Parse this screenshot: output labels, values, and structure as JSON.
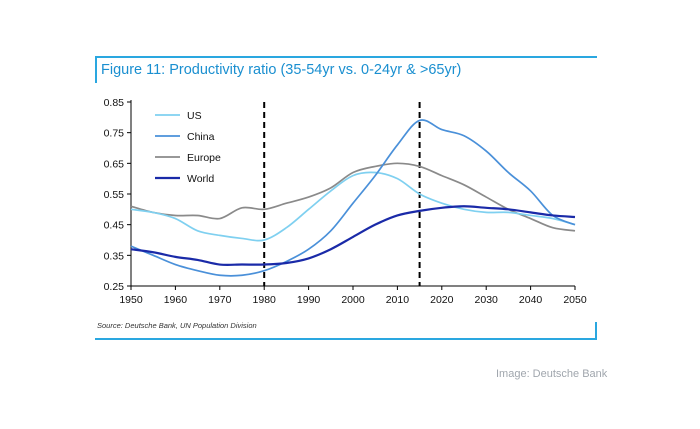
{
  "title": "Figure 11: Productivity ratio (35-54yr vs. 0-24yr & >65yr)",
  "source": "Source: Deutsche Bank, UN Population Division",
  "credit": "Image: Deutsche Bank",
  "colors": {
    "frame": "#2aa7e0",
    "title": "#1a8fd0",
    "US": "#7fd0f0",
    "China": "#4a90d9",
    "Europe": "#8a8a8a",
    "World": "#1a2aa8"
  },
  "chart_data": {
    "type": "line",
    "title": "Figure 11: Productivity ratio (35-54yr vs. 0-24yr & >65yr)",
    "xlabel": "",
    "ylabel": "",
    "xlim": [
      1950,
      2050
    ],
    "ylim": [
      0.25,
      0.85
    ],
    "xticks": [
      1950,
      1960,
      1970,
      1980,
      1990,
      2000,
      2010,
      2020,
      2030,
      2040,
      2050
    ],
    "yticks": [
      "0.25",
      "0.35",
      "0.45",
      "0.55",
      "0.65",
      "0.75",
      "0.85"
    ],
    "vlines": [
      1980,
      2015
    ],
    "legend": [
      "US",
      "China",
      "Europe",
      "World"
    ],
    "legend_position": "top-left",
    "series": [
      {
        "name": "US",
        "x": [
          1950,
          1955,
          1960,
          1965,
          1970,
          1975,
          1980,
          1985,
          1990,
          1995,
          2000,
          2005,
          2010,
          2015,
          2020,
          2025,
          2030,
          2035,
          2040,
          2045,
          2050
        ],
        "y": [
          0.5,
          0.49,
          0.47,
          0.43,
          0.415,
          0.405,
          0.4,
          0.44,
          0.5,
          0.56,
          0.61,
          0.62,
          0.6,
          0.55,
          0.52,
          0.5,
          0.49,
          0.49,
          0.48,
          0.47,
          0.45
        ]
      },
      {
        "name": "China",
        "x": [
          1950,
          1955,
          1960,
          1965,
          1970,
          1975,
          1980,
          1985,
          1990,
          1995,
          2000,
          2005,
          2010,
          2015,
          2020,
          2025,
          2030,
          2035,
          2040,
          2045,
          2050
        ],
        "y": [
          0.38,
          0.35,
          0.32,
          0.3,
          0.285,
          0.285,
          0.3,
          0.33,
          0.37,
          0.43,
          0.52,
          0.61,
          0.71,
          0.79,
          0.76,
          0.74,
          0.69,
          0.62,
          0.56,
          0.48,
          0.45
        ]
      },
      {
        "name": "Europe",
        "x": [
          1950,
          1955,
          1960,
          1965,
          1970,
          1975,
          1980,
          1985,
          1990,
          1995,
          2000,
          2005,
          2010,
          2015,
          2020,
          2025,
          2030,
          2035,
          2040,
          2045,
          2050
        ],
        "y": [
          0.51,
          0.49,
          0.48,
          0.48,
          0.47,
          0.505,
          0.5,
          0.52,
          0.54,
          0.57,
          0.62,
          0.64,
          0.65,
          0.64,
          0.61,
          0.58,
          0.54,
          0.5,
          0.47,
          0.44,
          0.43
        ]
      },
      {
        "name": "World",
        "x": [
          1950,
          1955,
          1960,
          1965,
          1970,
          1975,
          1980,
          1985,
          1990,
          1995,
          2000,
          2005,
          2010,
          2015,
          2020,
          2025,
          2030,
          2035,
          2040,
          2045,
          2050
        ],
        "y": [
          0.37,
          0.36,
          0.345,
          0.335,
          0.32,
          0.32,
          0.32,
          0.325,
          0.34,
          0.37,
          0.41,
          0.45,
          0.48,
          0.495,
          0.505,
          0.51,
          0.505,
          0.5,
          0.49,
          0.48,
          0.475
        ]
      }
    ]
  }
}
